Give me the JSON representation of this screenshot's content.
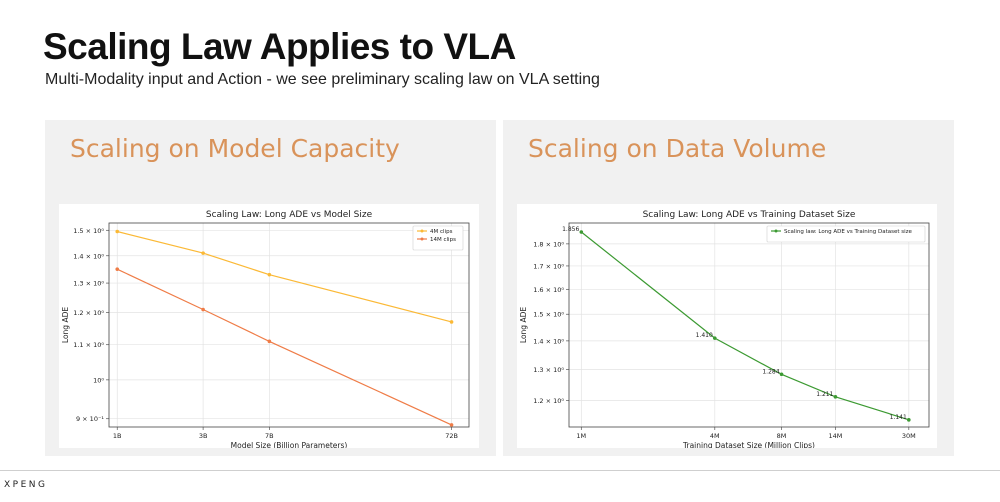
{
  "slide": {
    "title": "Scaling Law Applies to VLA",
    "subtitle": "Multi-Modality input and Action - we see preliminary scaling law on VLA setting",
    "brand": "XPENG"
  },
  "panels": {
    "left_heading": "Scaling on Model Capacity",
    "right_heading": "Scaling on Data Volume"
  },
  "colors": {
    "heading": "#d9935a",
    "series_4m": "#fbb936",
    "series_14m": "#ef7c47",
    "series_data": "#3c9a32",
    "panel_bg": "#f1f1f1"
  },
  "chart_data": [
    {
      "id": "model-capacity",
      "type": "line",
      "title": "Scaling Law: Long ADE vs Model Size",
      "xlabel": "Model Size (Billion Parameters)",
      "ylabel": "Long ADE",
      "xscale": "log",
      "yscale": "log",
      "categories": [
        "1B",
        "3B",
        "7B",
        "72B"
      ],
      "x": [
        1,
        3,
        7,
        72
      ],
      "xlim": [
        0.9,
        90
      ],
      "ylim": [
        0.88,
        1.53
      ],
      "yticks": [
        {
          "v": 1.5,
          "label": "1.5 × 10⁰"
        },
        {
          "v": 1.4,
          "label": "1.4 × 10⁰"
        },
        {
          "v": 1.3,
          "label": "1.3 × 10⁰"
        },
        {
          "v": 1.2,
          "label": "1.2 × 10⁰"
        },
        {
          "v": 1.1,
          "label": "1.1 × 10⁰"
        },
        {
          "v": 1.0,
          "label": "10⁰"
        },
        {
          "v": 0.9,
          "label": "9 × 10⁻¹"
        }
      ],
      "legend_position": "top-right",
      "series": [
        {
          "name": "4M clips",
          "color": "#fbb936",
          "values": [
            1.495,
            1.41,
            1.33,
            1.17
          ]
        },
        {
          "name": "14M clips",
          "color": "#ef7c47",
          "values": [
            1.35,
            1.21,
            1.11,
            0.885
          ]
        }
      ]
    },
    {
      "id": "data-volume",
      "type": "line",
      "title": "Scaling Law: Long ADE vs Training Dataset Size",
      "xlabel": "Training Dataset Size (Million Clips)",
      "ylabel": "Long ADE",
      "xscale": "log",
      "yscale": "log",
      "categories": [
        "1M",
        "4M",
        "8M",
        "14M",
        "30M"
      ],
      "x": [
        1,
        4,
        8,
        14,
        30
      ],
      "xlim": [
        0.88,
        37
      ],
      "ylim": [
        1.12,
        1.9
      ],
      "yticks": [
        {
          "v": 1.8,
          "label": "1.8 × 10⁰"
        },
        {
          "v": 1.7,
          "label": "1.7 × 10⁰"
        },
        {
          "v": 1.6,
          "label": "1.6 × 10⁰"
        },
        {
          "v": 1.5,
          "label": "1.5 × 10⁰"
        },
        {
          "v": 1.4,
          "label": "1.4 × 10⁰"
        },
        {
          "v": 1.3,
          "label": "1.3 × 10⁰"
        },
        {
          "v": 1.2,
          "label": "1.2 × 10⁰"
        }
      ],
      "legend_position": "top-right",
      "series": [
        {
          "name": "Scaling law: Long ADE vs Training Dataset size",
          "color": "#3c9a32",
          "values": [
            1.856,
            1.41,
            1.284,
            1.211,
            1.141
          ],
          "data_labels": [
            "1.856",
            "1.410",
            "1.284",
            "1.211",
            "1.141"
          ]
        }
      ]
    }
  ]
}
